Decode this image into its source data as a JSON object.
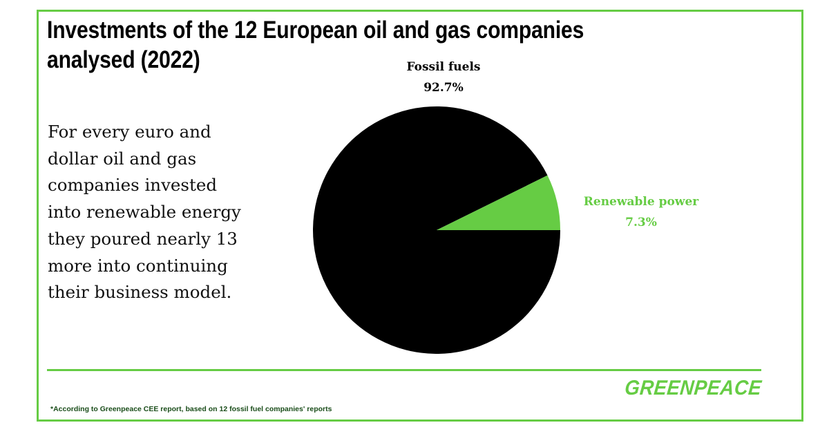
{
  "title": "Investments of the 12 European oil and gas companies analysed (2022)",
  "description": "For every euro and dollar oil and gas companies invested into renewable energy they poured nearly 13 more into continuing their business model.",
  "footnote": "*According to Greenpeace CEE report, based on 12 fossil fuel companies' reports",
  "logo_text": "GREENPEACE",
  "colors": {
    "accent": "#66cc44",
    "fossil": "#000000",
    "renewable": "#66cc44"
  },
  "chart_data": {
    "type": "pie",
    "title": "Investments of the 12 European oil and gas companies analysed (2022)",
    "slices": [
      {
        "label": "Fossil fuels",
        "value": 92.7,
        "value_label": "92.7%",
        "color": "#000000"
      },
      {
        "label": "Renewable power",
        "value": 7.3,
        "value_label": "7.3%",
        "color": "#66cc44"
      }
    ],
    "legend": "none",
    "start": "3 o'clock, renewable slice counter-clockwise"
  }
}
